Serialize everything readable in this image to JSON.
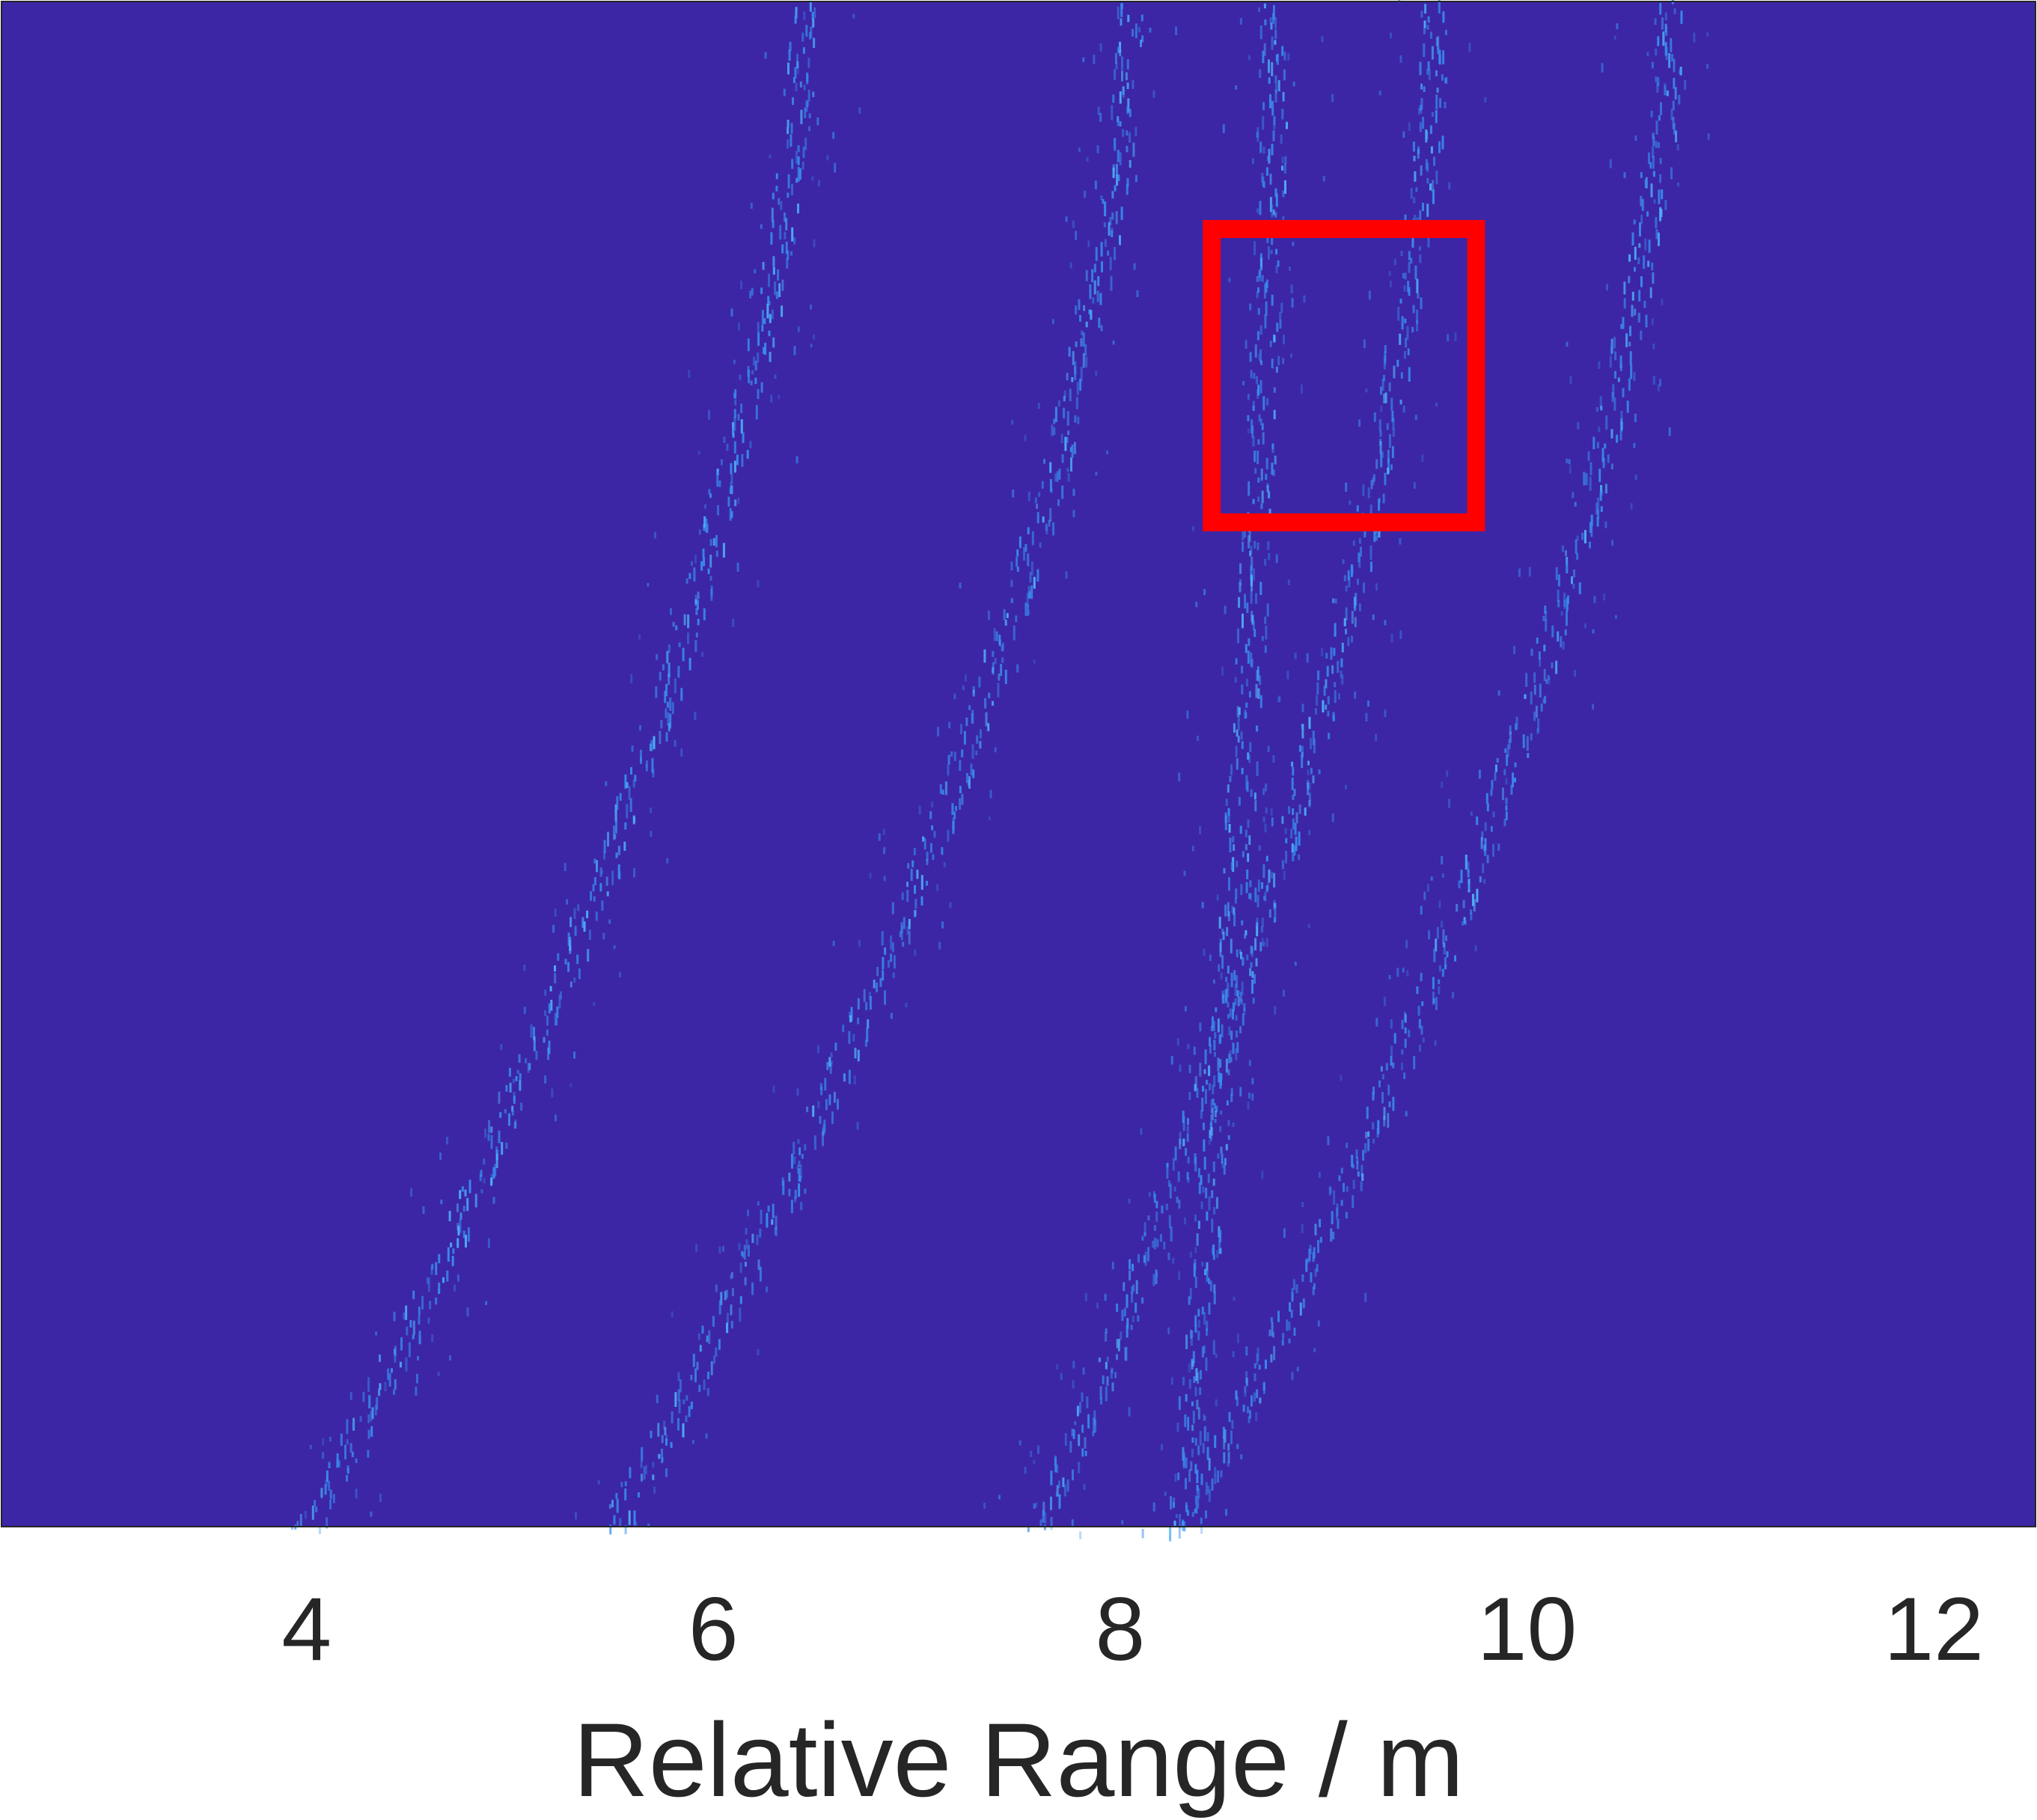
{
  "chart_data": {
    "type": "heatmap",
    "title": "",
    "xlabel": "Relative Range / m",
    "ylabel": "",
    "xlim": [
      2.5,
      12.5
    ],
    "xticks": [
      4,
      6,
      8,
      10,
      12
    ],
    "xtick_labels": [
      "4",
      "6",
      "8",
      "10",
      "12"
    ],
    "grid": false,
    "legend": "none",
    "colors": {
      "background": "#3c26a5",
      "echo": "#3a8cf0",
      "echo_bright": "#4fb0f8",
      "highlight_box": "#ff0000",
      "axis_frame": "#262626",
      "text": "#262626"
    },
    "traces": [
      {
        "name": "",
        "x_top": 6.45,
        "x_bottom": 4.0
      },
      {
        "name": "",
        "x_top": 8.05,
        "x_bottom": 5.5
      },
      {
        "name": "",
        "x_top": 9.55,
        "x_bottom": 7.6
      },
      {
        "name": "",
        "x_top": 8.75,
        "x_bottom": 8.3
      },
      {
        "name": "",
        "x_top": 10.7,
        "x_bottom": 8.3
      }
    ],
    "highlight_box": {
      "x_range": [
        8.45,
        9.75
      ]
    }
  }
}
